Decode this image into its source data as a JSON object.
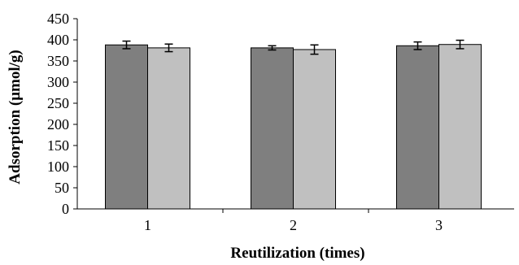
{
  "chart_data": {
    "type": "bar",
    "title": "",
    "xlabel": "Reutilization (times)",
    "ylabel": "Adsorption (μmol/g)",
    "categories": [
      "1",
      "2",
      "3"
    ],
    "ylim": [
      0,
      450
    ],
    "yticks": [
      0,
      50,
      100,
      150,
      200,
      250,
      300,
      350,
      400,
      450
    ],
    "grid": false,
    "legend": "none",
    "series": [
      {
        "values": [
          388,
          381,
          386
        ],
        "errors": [
          9,
          5,
          9
        ],
        "color": "#7f7f7f"
      },
      {
        "values": [
          381,
          377,
          389
        ],
        "errors": [
          9,
          11,
          10
        ],
        "color": "#c0c0c0"
      }
    ]
  }
}
